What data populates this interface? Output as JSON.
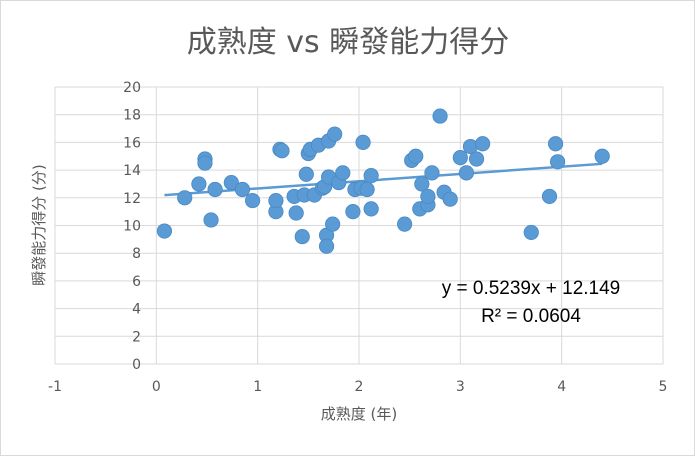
{
  "chart_data": {
    "type": "scatter",
    "title": "成熟度 vs 瞬發能力得分",
    "xlabel": "成熟度 (年)",
    "ylabel": "瞬發能力得分 (分)",
    "xlim": [
      -1,
      5
    ],
    "ylim": [
      0,
      20
    ],
    "x_ticks": [
      "-1",
      "0",
      "1",
      "2",
      "3",
      "4",
      "5"
    ],
    "y_ticks": [
      "0",
      "2",
      "4",
      "6",
      "8",
      "10",
      "12",
      "14",
      "16",
      "18",
      "20"
    ],
    "grid": true,
    "legend": "none",
    "colors": {
      "marker": "#5b9bd5",
      "trendline": "#5b9bd5",
      "grid": "#d9d9d9",
      "text": "#595959"
    },
    "series": [
      {
        "points": [
          [
            0.08,
            9.6
          ],
          [
            0.28,
            12.0
          ],
          [
            0.42,
            13.0
          ],
          [
            0.48,
            14.8
          ],
          [
            0.48,
            14.5
          ],
          [
            0.54,
            10.4
          ],
          [
            0.58,
            12.6
          ],
          [
            0.74,
            13.1
          ],
          [
            0.85,
            12.6
          ],
          [
            0.95,
            11.8
          ],
          [
            1.18,
            11.0
          ],
          [
            1.18,
            11.8
          ],
          [
            1.22,
            15.5
          ],
          [
            1.24,
            15.4
          ],
          [
            1.36,
            12.1
          ],
          [
            1.38,
            10.9
          ],
          [
            1.44,
            9.2
          ],
          [
            1.46,
            12.2
          ],
          [
            1.48,
            13.7
          ],
          [
            1.5,
            15.2
          ],
          [
            1.52,
            15.5
          ],
          [
            1.56,
            12.2
          ],
          [
            1.6,
            15.8
          ],
          [
            1.64,
            12.7
          ],
          [
            1.66,
            12.8
          ],
          [
            1.68,
            9.3
          ],
          [
            1.68,
            8.5
          ],
          [
            1.7,
            16.1
          ],
          [
            1.7,
            13.5
          ],
          [
            1.74,
            10.1
          ],
          [
            1.76,
            16.6
          ],
          [
            1.8,
            13.1
          ],
          [
            1.84,
            13.8
          ],
          [
            1.94,
            11.0
          ],
          [
            1.96,
            12.6
          ],
          [
            2.02,
            12.7
          ],
          [
            2.04,
            16.0
          ],
          [
            2.08,
            12.6
          ],
          [
            2.12,
            13.6
          ],
          [
            2.12,
            11.2
          ],
          [
            2.45,
            10.1
          ],
          [
            2.52,
            14.7
          ],
          [
            2.56,
            15.0
          ],
          [
            2.6,
            11.2
          ],
          [
            2.62,
            13.0
          ],
          [
            2.68,
            11.5
          ],
          [
            2.68,
            12.1
          ],
          [
            2.72,
            13.8
          ],
          [
            2.8,
            17.9
          ],
          [
            2.84,
            12.4
          ],
          [
            2.9,
            11.9
          ],
          [
            3.0,
            14.9
          ],
          [
            3.06,
            13.8
          ],
          [
            3.1,
            15.7
          ],
          [
            3.16,
            14.8
          ],
          [
            3.22,
            15.9
          ],
          [
            3.7,
            9.5
          ],
          [
            3.88,
            12.1
          ],
          [
            3.94,
            15.9
          ],
          [
            3.96,
            14.6
          ],
          [
            4.4,
            15.0
          ]
        ]
      }
    ],
    "trendline": {
      "slope": 0.5239,
      "intercept": 12.149,
      "x_range": [
        0.08,
        4.4
      ],
      "equation": "y = 0.5239x + 12.149",
      "r_squared": "R² = 0.0604"
    }
  }
}
